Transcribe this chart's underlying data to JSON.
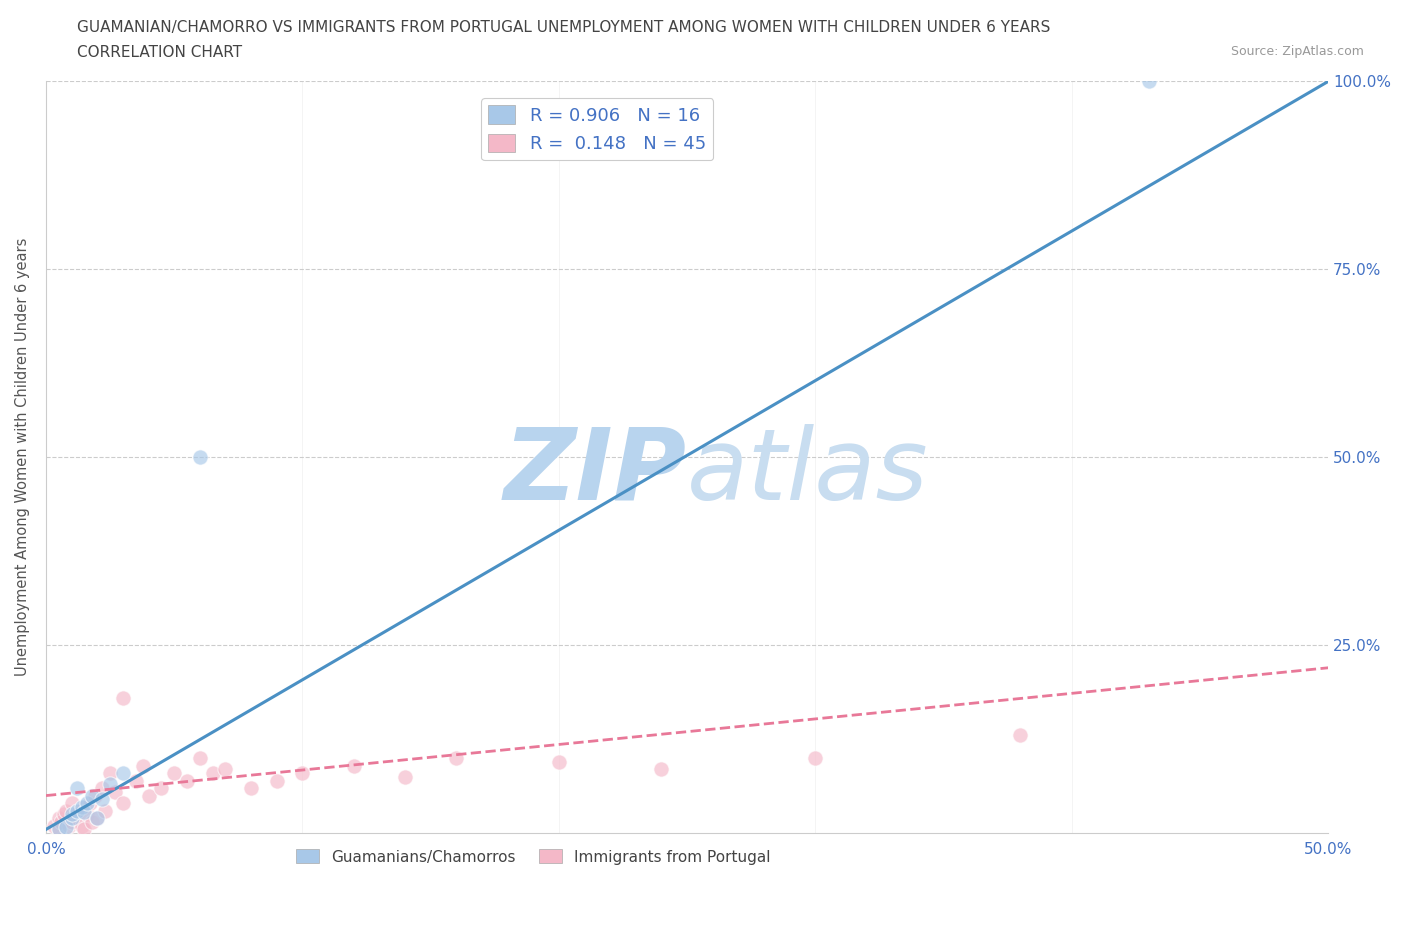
{
  "title_line1": "GUAMANIAN/CHAMORRO VS IMMIGRANTS FROM PORTUGAL UNEMPLOYMENT AMONG WOMEN WITH CHILDREN UNDER 6 YEARS",
  "title_line2": "CORRELATION CHART",
  "source": "Source: ZipAtlas.com",
  "watermark_zip": "ZIP",
  "watermark_atlas": "atlas",
  "xlabel": "",
  "ylabel": "Unemployment Among Women with Children Under 6 years",
  "xlim": [
    0.0,
    0.5
  ],
  "ylim": [
    0.0,
    1.0
  ],
  "xticks": [
    0.0,
    0.1,
    0.2,
    0.3,
    0.4,
    0.5
  ],
  "xticklabels": [
    "0.0%",
    "",
    "",
    "",
    "",
    "50.0%"
  ],
  "yticks": [
    0.0,
    0.25,
    0.5,
    0.75,
    1.0
  ],
  "yticklabels_right": [
    "",
    "25.0%",
    "50.0%",
    "75.0%",
    "100.0%"
  ],
  "blue_R": 0.906,
  "blue_N": 16,
  "pink_R": 0.148,
  "pink_N": 45,
  "blue_color": "#a8c8e8",
  "pink_color": "#f4b8c8",
  "blue_line_color": "#4a90c4",
  "pink_line_color": "#e87898",
  "legend_label_blue": "Guamanians/Chamorros",
  "legend_label_pink": "Immigrants from Portugal",
  "blue_scatter_x": [
    0.005,
    0.008,
    0.01,
    0.01,
    0.012,
    0.012,
    0.014,
    0.015,
    0.016,
    0.018,
    0.02,
    0.022,
    0.025,
    0.03,
    0.06,
    0.43
  ],
  "blue_scatter_y": [
    0.005,
    0.008,
    0.02,
    0.025,
    0.03,
    0.06,
    0.035,
    0.028,
    0.04,
    0.05,
    0.02,
    0.045,
    0.065,
    0.08,
    0.5,
    1.0
  ],
  "pink_scatter_x": [
    0.003,
    0.005,
    0.005,
    0.006,
    0.007,
    0.008,
    0.009,
    0.01,
    0.01,
    0.011,
    0.012,
    0.013,
    0.014,
    0.015,
    0.015,
    0.016,
    0.017,
    0.018,
    0.019,
    0.02,
    0.022,
    0.023,
    0.025,
    0.027,
    0.03,
    0.03,
    0.035,
    0.038,
    0.04,
    0.045,
    0.05,
    0.055,
    0.06,
    0.065,
    0.07,
    0.08,
    0.09,
    0.1,
    0.12,
    0.14,
    0.16,
    0.2,
    0.24,
    0.3,
    0.38
  ],
  "pink_scatter_y": [
    0.01,
    0.02,
    0.005,
    0.015,
    0.025,
    0.03,
    0.01,
    0.04,
    0.015,
    0.02,
    0.025,
    0.03,
    0.01,
    0.035,
    0.005,
    0.025,
    0.04,
    0.015,
    0.05,
    0.02,
    0.06,
    0.03,
    0.08,
    0.055,
    0.18,
    0.04,
    0.07,
    0.09,
    0.05,
    0.06,
    0.08,
    0.07,
    0.1,
    0.08,
    0.085,
    0.06,
    0.07,
    0.08,
    0.09,
    0.075,
    0.1,
    0.095,
    0.085,
    0.1,
    0.13
  ],
  "blue_trendline_x": [
    0.0,
    0.5
  ],
  "blue_trendline_y": [
    0.005,
    1.0
  ],
  "pink_trendline_x": [
    0.0,
    0.5
  ],
  "pink_trendline_y": [
    0.05,
    0.22
  ],
  "background_color": "#ffffff",
  "grid_color": "#cccccc",
  "title_color": "#444444",
  "axis_label_color": "#555555",
  "tick_color": "#4472c4",
  "watermark_color_zip": "#b8d4ee",
  "watermark_color_atlas": "#c8ddf0",
  "marker_size": 120,
  "marker_alpha": 0.65,
  "marker_edge_color": "white",
  "marker_edge_width": 0.8
}
